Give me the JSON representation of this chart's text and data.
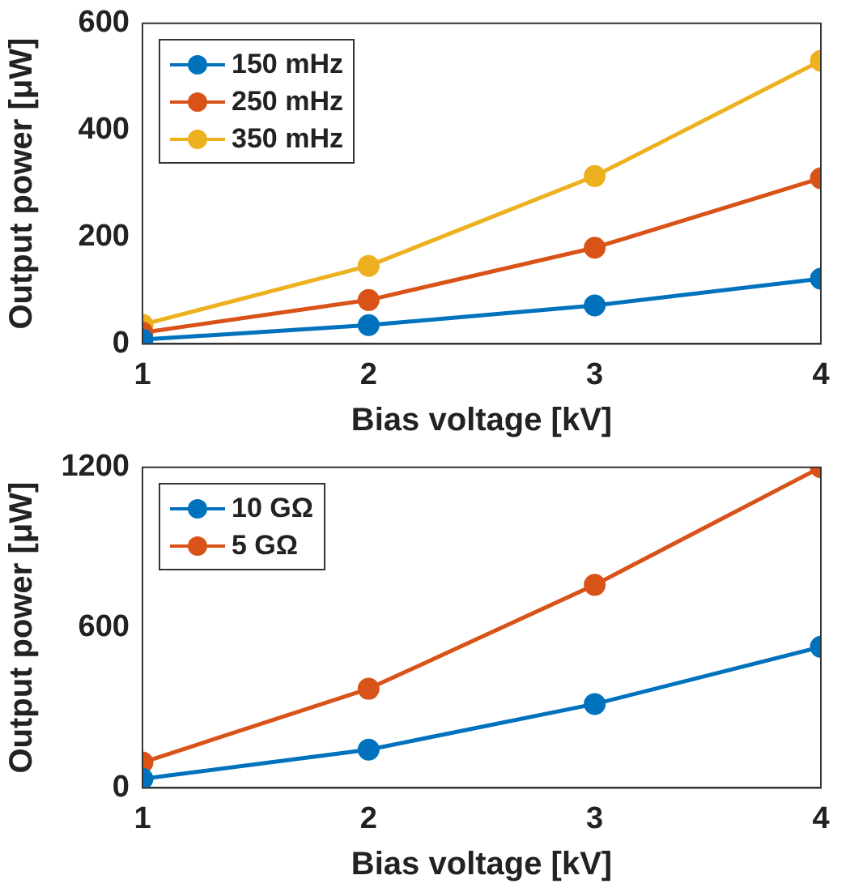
{
  "chart_data": [
    {
      "type": "line",
      "xlabel": "Bias voltage [kV]",
      "ylabel": "Output power [μW]",
      "x": [
        1,
        2,
        3,
        4
      ],
      "xlim": [
        1,
        4
      ],
      "xticks": [
        1,
        2,
        3,
        4
      ],
      "ylim": [
        0,
        600
      ],
      "yticks": [
        0,
        200,
        400,
        600
      ],
      "marker": "circle",
      "legend": "top left",
      "grid": false,
      "series": [
        {
          "name": "150 mHz",
          "color": "#0072bd",
          "values": [
            8,
            35,
            72,
            122
          ]
        },
        {
          "name": "250 mHz",
          "color": "#d95319",
          "values": [
            21,
            82,
            180,
            310
          ]
        },
        {
          "name": "350 mHz",
          "color": "#edb120",
          "values": [
            36,
            146,
            314,
            530
          ]
        }
      ]
    },
    {
      "type": "line",
      "xlabel": "Bias voltage [kV]",
      "ylabel": "Output power [μW]",
      "x": [
        1,
        2,
        3,
        4
      ],
      "xlim": [
        1,
        4
      ],
      "xticks": [
        1,
        2,
        3,
        4
      ],
      "ylim": [
        0,
        1200
      ],
      "yticks": [
        0,
        600,
        1200
      ],
      "marker": "circle",
      "legend": "top left",
      "grid": false,
      "series": [
        {
          "name": "10 GΩ",
          "color": "#0072bd",
          "values": [
            34,
            143,
            314,
            528
          ]
        },
        {
          "name": "5 GΩ",
          "color": "#d95319",
          "values": [
            95,
            371,
            760,
            1200
          ]
        }
      ]
    }
  ]
}
